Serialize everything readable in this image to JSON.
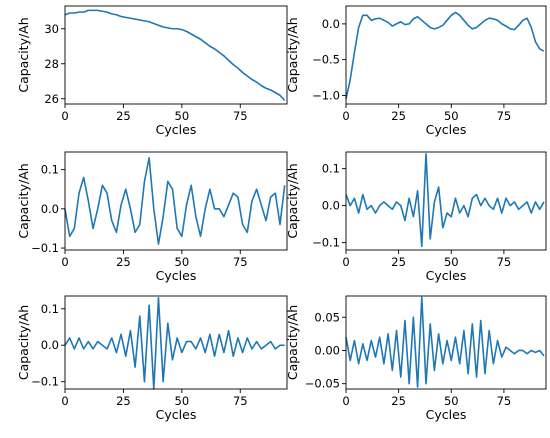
{
  "chart_data": [
    {
      "type": "line",
      "xlabel": "Cycles",
      "ylabel": "Capacity/Ah",
      "xlim": [
        0,
        95
      ],
      "ylim": [
        25.7,
        31.3
      ],
      "xticks": [
        0,
        25,
        50,
        75
      ],
      "yticks": [
        26,
        28,
        30
      ],
      "grid": false,
      "color": "#1f77b4",
      "series": [
        {
          "x": [
            0,
            2,
            4,
            6,
            8,
            10,
            12,
            14,
            16,
            18,
            20,
            22,
            24,
            26,
            28,
            30,
            32,
            34,
            36,
            38,
            40,
            42,
            44,
            46,
            48,
            50,
            52,
            54,
            56,
            58,
            60,
            62,
            64,
            66,
            68,
            70,
            72,
            74,
            76,
            78,
            80,
            82,
            84,
            86,
            88,
            90,
            92,
            94
          ],
          "y": [
            30.8,
            30.9,
            30.9,
            30.95,
            30.95,
            31.05,
            31.05,
            31.05,
            31.0,
            30.95,
            30.85,
            30.8,
            30.7,
            30.65,
            30.6,
            30.55,
            30.5,
            30.45,
            30.4,
            30.3,
            30.2,
            30.1,
            30.05,
            30.0,
            30.0,
            29.95,
            29.85,
            29.7,
            29.55,
            29.4,
            29.2,
            29.0,
            28.85,
            28.65,
            28.45,
            28.2,
            27.95,
            27.75,
            27.5,
            27.3,
            27.1,
            26.95,
            26.75,
            26.6,
            26.5,
            26.35,
            26.2,
            25.9
          ]
        }
      ]
    },
    {
      "type": "line",
      "xlabel": "Cycles",
      "ylabel": "Capacity/Ah",
      "xlim": [
        0,
        95
      ],
      "ylim": [
        -1.12,
        0.25
      ],
      "xticks": [
        0,
        25,
        50,
        75
      ],
      "yticks": [
        -1.0,
        -0.5,
        0.0
      ],
      "ytick_labels": [
        "−1.0",
        "−0.5",
        "0.0"
      ],
      "grid": false,
      "color": "#1f77b4",
      "series": [
        {
          "x": [
            0,
            2,
            4,
            6,
            8,
            10,
            12,
            14,
            16,
            18,
            20,
            22,
            24,
            26,
            28,
            30,
            32,
            34,
            36,
            38,
            40,
            42,
            44,
            46,
            48,
            50,
            52,
            54,
            56,
            58,
            60,
            62,
            64,
            66,
            68,
            70,
            72,
            74,
            76,
            78,
            80,
            82,
            84,
            86,
            88,
            90,
            92,
            94
          ],
          "y": [
            -1.05,
            -0.78,
            -0.4,
            -0.05,
            0.12,
            0.12,
            0.05,
            0.07,
            0.08,
            0.05,
            0.02,
            -0.03,
            0.0,
            0.03,
            -0.01,
            0.0,
            0.07,
            0.1,
            0.05,
            0.0,
            -0.05,
            -0.07,
            -0.05,
            -0.02,
            0.05,
            0.12,
            0.16,
            0.12,
            0.05,
            -0.02,
            -0.07,
            -0.05,
            0.0,
            0.05,
            0.08,
            0.07,
            0.05,
            0.0,
            -0.03,
            -0.07,
            -0.08,
            -0.02,
            0.05,
            0.08,
            -0.05,
            -0.25,
            -0.35,
            -0.38
          ]
        }
      ]
    },
    {
      "type": "line",
      "xlabel": "Cycles",
      "ylabel": "Capacity/Ah",
      "xlim": [
        0,
        95
      ],
      "ylim": [
        -0.105,
        0.145
      ],
      "xticks": [
        0,
        25,
        50,
        75
      ],
      "yticks": [
        -0.1,
        0.0,
        0.1
      ],
      "ytick_labels": [
        "−0.1",
        "0.0",
        "0.1"
      ],
      "grid": false,
      "color": "#1f77b4",
      "series": [
        {
          "x": [
            0,
            2,
            4,
            6,
            8,
            10,
            12,
            14,
            16,
            18,
            20,
            22,
            24,
            26,
            28,
            30,
            32,
            34,
            36,
            38,
            40,
            42,
            44,
            46,
            48,
            50,
            52,
            54,
            56,
            58,
            60,
            62,
            64,
            66,
            68,
            70,
            72,
            74,
            76,
            78,
            80,
            82,
            84,
            86,
            88,
            90,
            92,
            94
          ],
          "y": [
            0.0,
            -0.07,
            -0.05,
            0.04,
            0.08,
            0.02,
            -0.05,
            0.0,
            0.06,
            0.04,
            -0.03,
            -0.06,
            0.01,
            0.05,
            0.0,
            -0.06,
            -0.04,
            0.07,
            0.13,
            0.0,
            -0.09,
            -0.02,
            0.07,
            0.05,
            -0.05,
            -0.07,
            0.01,
            0.06,
            -0.02,
            -0.07,
            0.0,
            0.05,
            0.0,
            0.0,
            -0.02,
            0.01,
            0.04,
            0.03,
            -0.04,
            -0.06,
            0.02,
            0.05,
            0.01,
            -0.03,
            0.03,
            0.04,
            -0.04,
            0.06
          ]
        }
      ]
    },
    {
      "type": "line",
      "xlabel": "Cycles",
      "ylabel": "Capacity/Ah",
      "xlim": [
        0,
        95
      ],
      "ylim": [
        -0.12,
        0.145
      ],
      "xticks": [
        0,
        25,
        50,
        75
      ],
      "yticks": [
        -0.1,
        0.0,
        0.1
      ],
      "ytick_labels": [
        "−0.1",
        "0.0",
        "0.1"
      ],
      "grid": false,
      "color": "#1f77b4",
      "series": [
        {
          "x": [
            0,
            2,
            4,
            6,
            8,
            10,
            12,
            14,
            16,
            18,
            20,
            22,
            24,
            26,
            28,
            30,
            32,
            34,
            36,
            38,
            40,
            42,
            44,
            46,
            48,
            50,
            52,
            54,
            56,
            58,
            60,
            62,
            64,
            66,
            68,
            70,
            72,
            74,
            76,
            78,
            80,
            82,
            84,
            86,
            88,
            90,
            92,
            94
          ],
          "y": [
            0.03,
            0.0,
            0.02,
            -0.02,
            0.03,
            -0.01,
            0.0,
            -0.02,
            0.0,
            0.01,
            0.0,
            -0.01,
            0.01,
            0.0,
            -0.04,
            0.02,
            -0.03,
            0.04,
            -0.11,
            0.14,
            -0.09,
            0.01,
            0.05,
            -0.06,
            -0.02,
            -0.03,
            0.02,
            -0.02,
            0.0,
            -0.03,
            0.02,
            0.03,
            0.0,
            0.02,
            0.0,
            -0.01,
            0.02,
            -0.02,
            0.02,
            0.0,
            0.01,
            -0.01,
            0.0,
            0.01,
            -0.02,
            0.01,
            -0.01,
            0.01
          ]
        }
      ]
    },
    {
      "type": "line",
      "xlabel": "Cycles",
      "ylabel": "Capacity/Ah",
      "xlim": [
        0,
        95
      ],
      "ylim": [
        -0.12,
        0.135
      ],
      "xticks": [
        0,
        25,
        50,
        75
      ],
      "yticks": [
        -0.1,
        0.0,
        0.1
      ],
      "ytick_labels": [
        "−0.1",
        "0.0",
        "0.1"
      ],
      "grid": false,
      "color": "#1f77b4",
      "series": [
        {
          "x": [
            0,
            2,
            4,
            6,
            8,
            10,
            12,
            14,
            16,
            18,
            20,
            22,
            24,
            26,
            28,
            30,
            32,
            34,
            36,
            38,
            40,
            42,
            44,
            46,
            48,
            50,
            52,
            54,
            56,
            58,
            60,
            62,
            64,
            66,
            68,
            70,
            72,
            74,
            76,
            78,
            80,
            82,
            84,
            86,
            88,
            90,
            92,
            94
          ],
          "y": [
            0.0,
            0.02,
            -0.01,
            0.02,
            -0.01,
            0.01,
            -0.01,
            0.01,
            0.0,
            -0.01,
            0.02,
            -0.02,
            0.03,
            -0.03,
            0.04,
            -0.06,
            0.08,
            -0.1,
            0.11,
            -0.12,
            0.13,
            -0.1,
            0.06,
            -0.04,
            0.02,
            -0.02,
            0.01,
            0.01,
            -0.01,
            0.02,
            -0.02,
            0.03,
            -0.03,
            0.03,
            -0.02,
            0.04,
            -0.03,
            0.02,
            -0.02,
            0.02,
            -0.01,
            0.01,
            -0.01,
            0.0,
            0.01,
            -0.01,
            0.0,
            0.0
          ]
        }
      ]
    },
    {
      "type": "line",
      "xlabel": "Cycles",
      "ylabel": "Capacity/Ah",
      "xlim": [
        0,
        95
      ],
      "ylim": [
        -0.058,
        0.082
      ],
      "xticks": [
        0,
        25,
        50,
        75
      ],
      "yticks": [
        -0.05,
        0.0,
        0.05
      ],
      "ytick_labels": [
        "−0.05",
        "0.00",
        "0.05"
      ],
      "grid": false,
      "color": "#1f77b4",
      "series": [
        {
          "x": [
            0,
            2,
            4,
            6,
            8,
            10,
            12,
            14,
            16,
            18,
            20,
            22,
            24,
            26,
            28,
            30,
            32,
            34,
            36,
            38,
            40,
            42,
            44,
            46,
            48,
            50,
            52,
            54,
            56,
            58,
            60,
            62,
            64,
            66,
            68,
            70,
            72,
            74,
            76,
            78,
            80,
            82,
            84,
            86,
            88,
            90,
            92,
            94
          ],
          "y": [
            0.02,
            -0.015,
            0.015,
            -0.02,
            0.01,
            -0.015,
            0.015,
            -0.01,
            0.02,
            -0.02,
            0.025,
            -0.03,
            0.03,
            -0.04,
            0.045,
            -0.05,
            0.05,
            -0.055,
            0.08,
            -0.05,
            0.04,
            -0.03,
            0.025,
            -0.02,
            0.015,
            -0.015,
            0.02,
            -0.02,
            0.03,
            -0.035,
            0.04,
            -0.04,
            0.045,
            -0.035,
            0.03,
            -0.02,
            0.015,
            -0.01,
            0.005,
            0.0,
            -0.005,
            0.0,
            0.0,
            -0.005,
            0.0,
            -0.003,
            0.0,
            -0.008
          ]
        }
      ]
    }
  ]
}
